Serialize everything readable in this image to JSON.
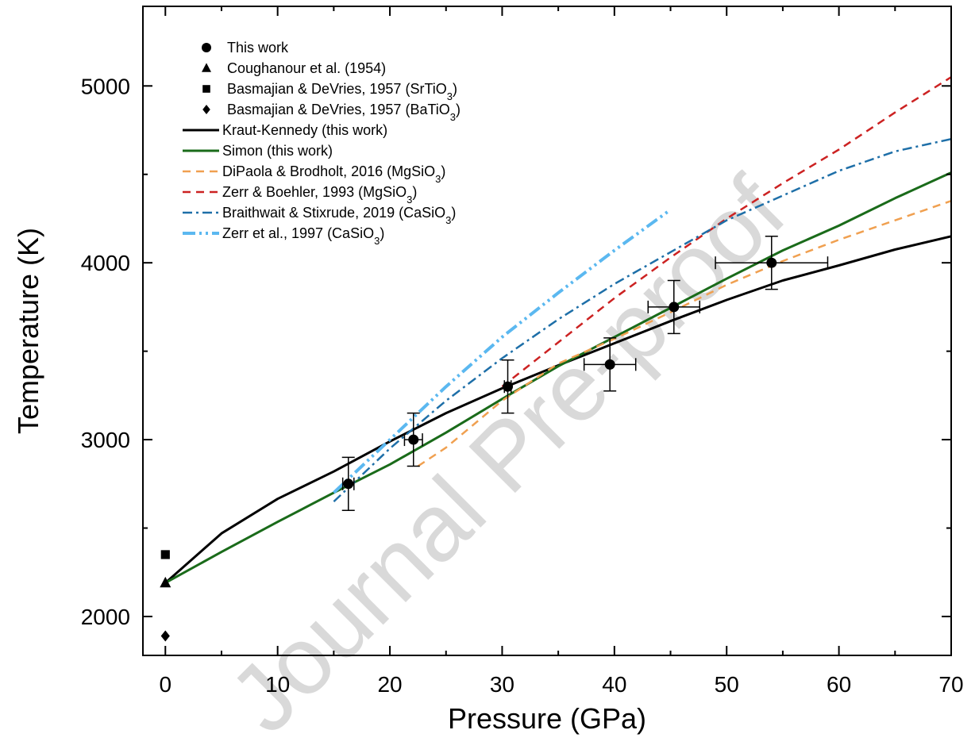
{
  "chart_data": {
    "type": "line",
    "xlabel": "Pressure (GPa)",
    "ylabel": "Temperature (K)",
    "xlim": [
      -2,
      70
    ],
    "ylim": [
      1780,
      5450
    ],
    "xticks": [
      0,
      10,
      20,
      30,
      40,
      50,
      60,
      70
    ],
    "yticks": [
      2000,
      3000,
      4000,
      5000
    ],
    "grid": false,
    "legend_position": "top-left",
    "watermark": "Journal Pre-proof",
    "series": [
      {
        "name": "This work",
        "kind": "markers",
        "marker": "circle",
        "color": "#000000",
        "points": [
          {
            "x": 16.3,
            "y": 2750,
            "xerr": 0.5,
            "yerr": 150
          },
          {
            "x": 22.1,
            "y": 3000,
            "xerr": 0.8,
            "yerr": 150
          },
          {
            "x": 30.5,
            "y": 3300,
            "xerr": 0.3,
            "yerr": 150
          },
          {
            "x": 39.6,
            "y": 3425,
            "xerr": 2.3,
            "yerr": 150
          },
          {
            "x": 45.3,
            "y": 3750,
            "xerr": 2.3,
            "yerr": 150
          },
          {
            "x": 54.0,
            "y": 4000,
            "xerr": 5.0,
            "yerr": 150
          }
        ]
      },
      {
        "name": "Coughanour et al. (1954)",
        "kind": "markers",
        "marker": "triangle",
        "color": "#000000",
        "points": [
          {
            "x": 0,
            "y": 2190
          }
        ]
      },
      {
        "name": "Basmajian & DeVries, 1957 (SrTiO",
        "sub": "3",
        "suffix": ")",
        "kind": "markers",
        "marker": "square",
        "color": "#000000",
        "points": [
          {
            "x": 0,
            "y": 2350
          }
        ]
      },
      {
        "name": "Basmajian & DeVries, 1957 (BaTiO",
        "sub": "3",
        "suffix": ")",
        "kind": "markers",
        "marker": "diamond",
        "color": "#000000",
        "points": [
          {
            "x": 0,
            "y": 1890
          }
        ]
      },
      {
        "name": "Kraut-Kennedy (this work)",
        "kind": "line",
        "dash": "solid",
        "color": "#000000",
        "width": 3,
        "x": [
          0,
          5,
          10,
          15,
          20,
          25,
          30,
          35,
          40,
          45,
          50,
          55,
          60,
          65,
          70
        ],
        "y": [
          2190,
          2470,
          2665,
          2820,
          2990,
          3150,
          3290,
          3420,
          3545,
          3670,
          3790,
          3900,
          3985,
          4075,
          4150
        ]
      },
      {
        "name": "Simon (this work)",
        "kind": "line",
        "dash": "solid",
        "color": "#1a6b1a",
        "width": 3,
        "x": [
          0,
          5,
          10,
          15,
          20,
          25,
          30,
          35,
          40,
          45,
          50,
          55,
          60,
          65,
          70
        ],
        "y": [
          2190,
          2365,
          2535,
          2700,
          2860,
          3040,
          3230,
          3415,
          3580,
          3745,
          3910,
          4070,
          4210,
          4365,
          4510
        ]
      },
      {
        "name": "DiPaola & Brodholt, 2016 (MgSiO",
        "sub": "3",
        "suffix": ")",
        "kind": "line",
        "dash": "dashed",
        "color": "#f0a050",
        "width": 2.5,
        "x": [
          22.5,
          25,
          30,
          35,
          40,
          45,
          50,
          55,
          60,
          65,
          70
        ],
        "y": [
          2850,
          2955,
          3220,
          3430,
          3570,
          3720,
          3875,
          4010,
          4130,
          4240,
          4350
        ]
      },
      {
        "name": "Zerr & Boehler, 1993 (MgSiO",
        "sub": "3",
        "suffix": ")",
        "kind": "line",
        "dash": "dashed",
        "color": "#cc2222",
        "width": 2.5,
        "x": [
          30,
          35,
          40,
          45,
          50,
          55,
          60,
          65,
          70
        ],
        "y": [
          3300,
          3550,
          3800,
          4030,
          4250,
          4450,
          4640,
          4850,
          5050
        ]
      },
      {
        "name": "Braithwait & Stixrude, 2019 (CaSiO",
        "sub": "3",
        "suffix": ")",
        "kind": "line",
        "dash": "dashdot",
        "color": "#1e6fa8",
        "width": 2.5,
        "x": [
          15,
          20,
          25,
          30,
          35,
          40,
          45,
          50,
          55,
          60,
          65,
          70
        ],
        "y": [
          2650,
          2950,
          3220,
          3460,
          3680,
          3880,
          4060,
          4240,
          4380,
          4520,
          4630,
          4700
        ]
      },
      {
        "name": "Zerr et al., 1997 (CaSiO",
        "sub": "3",
        "suffix": ")",
        "kind": "line",
        "dash": "dashdotdot",
        "color": "#5bb8f0",
        "width": 4,
        "x": [
          15,
          20,
          25,
          30,
          35,
          40,
          45
        ],
        "y": [
          2700,
          3000,
          3300,
          3580,
          3830,
          4070,
          4300
        ]
      }
    ]
  }
}
